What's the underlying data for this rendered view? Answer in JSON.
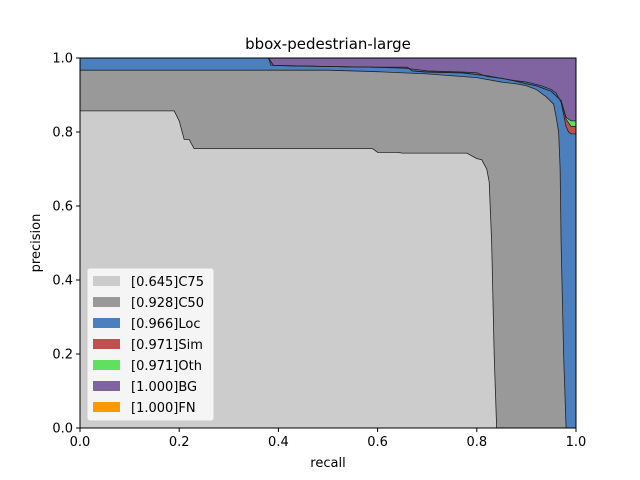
{
  "chart_data": {
    "type": "area",
    "title": "bbox-pedestrian-large",
    "xlabel": "recall",
    "ylabel": "precision",
    "xlim": [
      0,
      1
    ],
    "ylim": [
      0,
      1
    ],
    "xticks": [
      "0.0",
      "0.2",
      "0.4",
      "0.6",
      "0.8",
      "1.0"
    ],
    "yticks": [
      "0.0",
      "0.2",
      "0.4",
      "0.6",
      "0.8",
      "1.0"
    ],
    "grid": false,
    "legend_position": "lower-left",
    "series": [
      {
        "name": "[0.645]C75",
        "color": "#cccccc",
        "points": [
          [
            0,
            0.857
          ],
          [
            0.19,
            0.857
          ],
          [
            0.2,
            0.83
          ],
          [
            0.21,
            0.78
          ],
          [
            0.22,
            0.78
          ],
          [
            0.23,
            0.755
          ],
          [
            0.5,
            0.755
          ],
          [
            0.59,
            0.755
          ],
          [
            0.6,
            0.745
          ],
          [
            0.64,
            0.745
          ],
          [
            0.65,
            0.743
          ],
          [
            0.7,
            0.743
          ],
          [
            0.75,
            0.743
          ],
          [
            0.78,
            0.743
          ],
          [
            0.8,
            0.728
          ],
          [
            0.81,
            0.725
          ],
          [
            0.82,
            0.7
          ],
          [
            0.825,
            0.665
          ],
          [
            0.83,
            0.5
          ],
          [
            0.835,
            0.2
          ],
          [
            0.84,
            0
          ]
        ]
      },
      {
        "name": "[0.928]C50",
        "color": "#999999",
        "points": [
          [
            0,
            0.967
          ],
          [
            0.5,
            0.967
          ],
          [
            0.6,
            0.963
          ],
          [
            0.7,
            0.957
          ],
          [
            0.8,
            0.947
          ],
          [
            0.85,
            0.935
          ],
          [
            0.88,
            0.93
          ],
          [
            0.9,
            0.925
          ],
          [
            0.92,
            0.915
          ],
          [
            0.94,
            0.895
          ],
          [
            0.955,
            0.875
          ],
          [
            0.96,
            0.84
          ],
          [
            0.965,
            0.8
          ],
          [
            0.968,
            0.7
          ],
          [
            0.97,
            0.5
          ],
          [
            0.975,
            0.2
          ],
          [
            0.98,
            0
          ]
        ]
      },
      {
        "name": "[0.966]Loc",
        "color": "#4c7fbd",
        "points": [
          [
            0,
            1.0
          ],
          [
            0.38,
            1.0
          ],
          [
            0.385,
            0.98
          ],
          [
            0.44,
            0.978
          ],
          [
            0.5,
            0.977
          ],
          [
            0.6,
            0.975
          ],
          [
            0.66,
            0.972
          ],
          [
            0.7,
            0.965
          ],
          [
            0.77,
            0.962
          ],
          [
            0.8,
            0.96
          ],
          [
            0.82,
            0.95
          ],
          [
            0.85,
            0.945
          ],
          [
            0.87,
            0.94
          ],
          [
            0.9,
            0.935
          ],
          [
            0.93,
            0.925
          ],
          [
            0.95,
            0.915
          ],
          [
            0.96,
            0.905
          ],
          [
            0.97,
            0.88
          ],
          [
            0.98,
            0.815
          ],
          [
            0.985,
            0.8
          ],
          [
            0.99,
            0.795
          ],
          [
            1.0,
            0.795
          ],
          [
            1.0,
            0
          ]
        ]
      },
      {
        "name": "[0.971]Sim",
        "color": "#c0504d",
        "points": [
          [
            0,
            1.0
          ],
          [
            0.38,
            1.0
          ],
          [
            0.39,
            0.98
          ],
          [
            0.5,
            0.977
          ],
          [
            0.6,
            0.975
          ],
          [
            0.66,
            0.975
          ],
          [
            0.67,
            0.965
          ],
          [
            0.7,
            0.962
          ],
          [
            0.77,
            0.96
          ],
          [
            0.8,
            0.955
          ],
          [
            0.82,
            0.952
          ],
          [
            0.85,
            0.945
          ],
          [
            0.87,
            0.94
          ],
          [
            0.9,
            0.93
          ],
          [
            0.92,
            0.925
          ],
          [
            0.93,
            0.92
          ],
          [
            0.95,
            0.91
          ],
          [
            0.97,
            0.885
          ],
          [
            0.98,
            0.835
          ],
          [
            0.99,
            0.815
          ],
          [
            1.0,
            0.815
          ],
          [
            1.0,
            0
          ]
        ]
      },
      {
        "name": "[0.971]Oth",
        "color": "#5fe05f",
        "points": [
          [
            0,
            1.0
          ],
          [
            0.38,
            1.0
          ],
          [
            0.39,
            0.98
          ],
          [
            0.5,
            0.977
          ],
          [
            0.6,
            0.975
          ],
          [
            0.66,
            0.975
          ],
          [
            0.67,
            0.965
          ],
          [
            0.7,
            0.962
          ],
          [
            0.77,
            0.96
          ],
          [
            0.8,
            0.955
          ],
          [
            0.82,
            0.952
          ],
          [
            0.85,
            0.945
          ],
          [
            0.87,
            0.94
          ],
          [
            0.9,
            0.93
          ],
          [
            0.92,
            0.925
          ],
          [
            0.93,
            0.92
          ],
          [
            0.95,
            0.91
          ],
          [
            0.97,
            0.885
          ],
          [
            0.98,
            0.84
          ],
          [
            0.99,
            0.83
          ],
          [
            1.0,
            0.83
          ],
          [
            1.0,
            0
          ]
        ]
      },
      {
        "name": "[1.000]BG",
        "color": "#8064a2",
        "points": [
          [
            0,
            1.0
          ],
          [
            1.0,
            1.0
          ],
          [
            1.0,
            0
          ]
        ]
      },
      {
        "name": "[1.000]FN",
        "color": "#ff9900",
        "points": [
          [
            0,
            1.0
          ],
          [
            1.0,
            1.0
          ],
          [
            1.0,
            0
          ]
        ]
      }
    ]
  }
}
